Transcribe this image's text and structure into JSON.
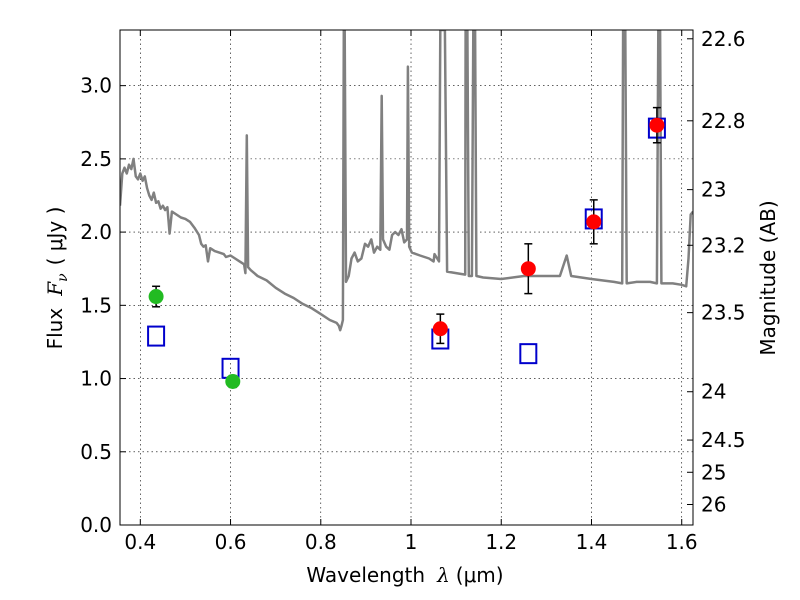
{
  "chart_data": {
    "type": "scatter",
    "xlabel_main": "Wavelength",
    "xlabel_symbol": "λ",
    "xlabel_unit": "(μm)",
    "ylabel_main": "Flux",
    "ylabel_symbol": "F",
    "ylabel_symbol_sub": "ν",
    "ylabel_unit": "( μJy )",
    "ylabel_right": "Magnitude (AB)",
    "xlim": [
      0.355,
      1.625
    ],
    "ylim": [
      0.0,
      3.38
    ],
    "grid": true,
    "x_ticks": [
      {
        "value": 0.4,
        "label": "0.4"
      },
      {
        "value": 0.6,
        "label": "0.6"
      },
      {
        "value": 0.8,
        "label": "0.8"
      },
      {
        "value": 1.0,
        "label": "1"
      },
      {
        "value": 1.2,
        "label": "1.2"
      },
      {
        "value": 1.4,
        "label": "1.4"
      },
      {
        "value": 1.6,
        "label": "1.6"
      }
    ],
    "y_ticks": [
      {
        "value": 0.0,
        "label": "0.0"
      },
      {
        "value": 0.5,
        "label": "0.5"
      },
      {
        "value": 1.0,
        "label": "1.0"
      },
      {
        "value": 1.5,
        "label": "1.5"
      },
      {
        "value": 2.0,
        "label": "2.0"
      },
      {
        "value": 2.5,
        "label": "2.5"
      },
      {
        "value": 3.0,
        "label": "3.0"
      }
    ],
    "right_ticks": [
      {
        "flux": 3.32,
        "label": "22.6"
      },
      {
        "flux": 2.76,
        "label": "22.8"
      },
      {
        "flux": 2.29,
        "label": "23"
      },
      {
        "flux": 1.91,
        "label": "23.2"
      },
      {
        "flux": 1.45,
        "label": "23.5"
      },
      {
        "flux": 0.91,
        "label": "24"
      },
      {
        "flux": 0.58,
        "label": "24.5"
      },
      {
        "flux": 0.36,
        "label": "25"
      },
      {
        "flux": 0.14,
        "label": "26"
      }
    ],
    "colors": {
      "model": "#808080",
      "green_points": "#22bb22",
      "red_points": "#ff0000",
      "model_boxes": "#0000cc",
      "errorbars": "#000000"
    },
    "model_spectrum": [
      [
        0.355,
        2.18
      ],
      [
        0.36,
        2.4
      ],
      [
        0.365,
        2.44
      ],
      [
        0.37,
        2.4
      ],
      [
        0.375,
        2.46
      ],
      [
        0.38,
        2.43
      ],
      [
        0.385,
        2.5
      ],
      [
        0.39,
        2.38
      ],
      [
        0.395,
        2.36
      ],
      [
        0.4,
        2.4
      ],
      [
        0.405,
        2.35
      ],
      [
        0.41,
        2.38
      ],
      [
        0.415,
        2.3
      ],
      [
        0.42,
        2.25
      ],
      [
        0.425,
        2.22
      ],
      [
        0.43,
        2.27
      ],
      [
        0.435,
        2.2
      ],
      [
        0.44,
        2.21
      ],
      [
        0.445,
        2.16
      ],
      [
        0.45,
        2.18
      ],
      [
        0.455,
        2.15
      ],
      [
        0.46,
        2.17
      ],
      [
        0.465,
        1.99
      ],
      [
        0.47,
        2.14
      ],
      [
        0.48,
        2.12
      ],
      [
        0.49,
        2.1
      ],
      [
        0.5,
        2.09
      ],
      [
        0.51,
        2.07
      ],
      [
        0.52,
        2.03
      ],
      [
        0.53,
        1.98
      ],
      [
        0.535,
        1.92
      ],
      [
        0.54,
        1.9
      ],
      [
        0.545,
        1.91
      ],
      [
        0.55,
        1.8
      ],
      [
        0.555,
        1.89
      ],
      [
        0.565,
        1.87
      ],
      [
        0.575,
        1.86
      ],
      [
        0.585,
        1.85
      ],
      [
        0.59,
        1.83
      ],
      [
        0.6,
        1.84
      ],
      [
        0.61,
        1.82
      ],
      [
        0.62,
        1.8
      ],
      [
        0.63,
        1.78
      ],
      [
        0.633,
        1.72
      ],
      [
        0.636,
        2.66
      ],
      [
        0.639,
        1.76
      ],
      [
        0.645,
        1.74
      ],
      [
        0.66,
        1.7
      ],
      [
        0.68,
        1.67
      ],
      [
        0.7,
        1.62
      ],
      [
        0.72,
        1.58
      ],
      [
        0.74,
        1.55
      ],
      [
        0.76,
        1.51
      ],
      [
        0.78,
        1.48
      ],
      [
        0.8,
        1.44
      ],
      [
        0.82,
        1.4
      ],
      [
        0.835,
        1.38
      ],
      [
        0.84,
        1.36
      ],
      [
        0.843,
        1.33
      ],
      [
        0.846,
        1.36
      ],
      [
        0.849,
        1.4
      ],
      [
        0.851,
        3.38
      ],
      [
        0.853,
        3.38
      ],
      [
        0.856,
        1.66
      ],
      [
        0.862,
        1.7
      ],
      [
        0.868,
        1.82
      ],
      [
        0.875,
        1.86
      ],
      [
        0.882,
        1.8
      ],
      [
        0.89,
        1.82
      ],
      [
        0.898,
        1.92
      ],
      [
        0.905,
        1.9
      ],
      [
        0.912,
        1.95
      ],
      [
        0.918,
        1.86
      ],
      [
        0.925,
        1.9
      ],
      [
        0.932,
        1.88
      ],
      [
        0.935,
        2.93
      ],
      [
        0.938,
        1.95
      ],
      [
        0.945,
        1.9
      ],
      [
        0.952,
        1.88
      ],
      [
        0.958,
        1.98
      ],
      [
        0.965,
        2.0
      ],
      [
        0.972,
        1.98
      ],
      [
        0.979,
        2.02
      ],
      [
        0.985,
        1.93
      ],
      [
        0.991,
        1.95
      ],
      [
        0.993,
        3.13
      ],
      [
        0.996,
        1.9
      ],
      [
        1.002,
        1.86
      ],
      [
        1.02,
        1.84
      ],
      [
        1.04,
        1.82
      ],
      [
        1.05,
        1.8
      ],
      [
        1.052,
        1.85
      ],
      [
        1.062,
        1.8
      ],
      [
        1.065,
        3.38
      ],
      [
        1.075,
        3.38
      ],
      [
        1.08,
        1.73
      ],
      [
        1.1,
        1.72
      ],
      [
        1.12,
        1.71
      ],
      [
        1.121,
        3.38
      ],
      [
        1.125,
        3.38
      ],
      [
        1.128,
        1.7
      ],
      [
        1.135,
        1.7
      ],
      [
        1.138,
        3.38
      ],
      [
        1.142,
        3.38
      ],
      [
        1.145,
        1.7
      ],
      [
        1.16,
        1.69
      ],
      [
        1.2,
        1.68
      ],
      [
        1.25,
        1.7
      ],
      [
        1.3,
        1.7
      ],
      [
        1.33,
        1.7
      ],
      [
        1.345,
        1.84
      ],
      [
        1.355,
        1.7
      ],
      [
        1.4,
        1.68
      ],
      [
        1.45,
        1.66
      ],
      [
        1.468,
        1.65
      ],
      [
        1.47,
        3.38
      ],
      [
        1.475,
        3.38
      ],
      [
        1.478,
        1.65
      ],
      [
        1.5,
        1.66
      ],
      [
        1.53,
        1.66
      ],
      [
        1.545,
        1.65
      ],
      [
        1.548,
        3.38
      ],
      [
        1.552,
        3.38
      ],
      [
        1.555,
        1.65
      ],
      [
        1.58,
        1.65
      ],
      [
        1.6,
        1.64
      ],
      [
        1.61,
        1.63
      ],
      [
        1.615,
        1.82
      ],
      [
        1.62,
        2.12
      ],
      [
        1.625,
        2.14
      ]
    ],
    "green_points": [
      {
        "x": 0.435,
        "y": 1.56,
        "yerr": 0.07
      },
      {
        "x": 0.605,
        "y": 0.98,
        "yerr": 0.04
      }
    ],
    "red_points": [
      {
        "x": 1.065,
        "y": 1.34,
        "yerr": 0.1
      },
      {
        "x": 1.26,
        "y": 1.75,
        "yerr": 0.17
      },
      {
        "x": 1.405,
        "y": 2.07,
        "yerr": 0.15
      },
      {
        "x": 1.545,
        "y": 2.73,
        "yerr": 0.12
      }
    ],
    "model_boxes": [
      {
        "x": 0.435,
        "y": 1.29
      },
      {
        "x": 0.6,
        "y": 1.07
      },
      {
        "x": 1.065,
        "y": 1.27
      },
      {
        "x": 1.26,
        "y": 1.17
      },
      {
        "x": 1.405,
        "y": 2.09
      },
      {
        "x": 1.545,
        "y": 2.71
      }
    ]
  }
}
